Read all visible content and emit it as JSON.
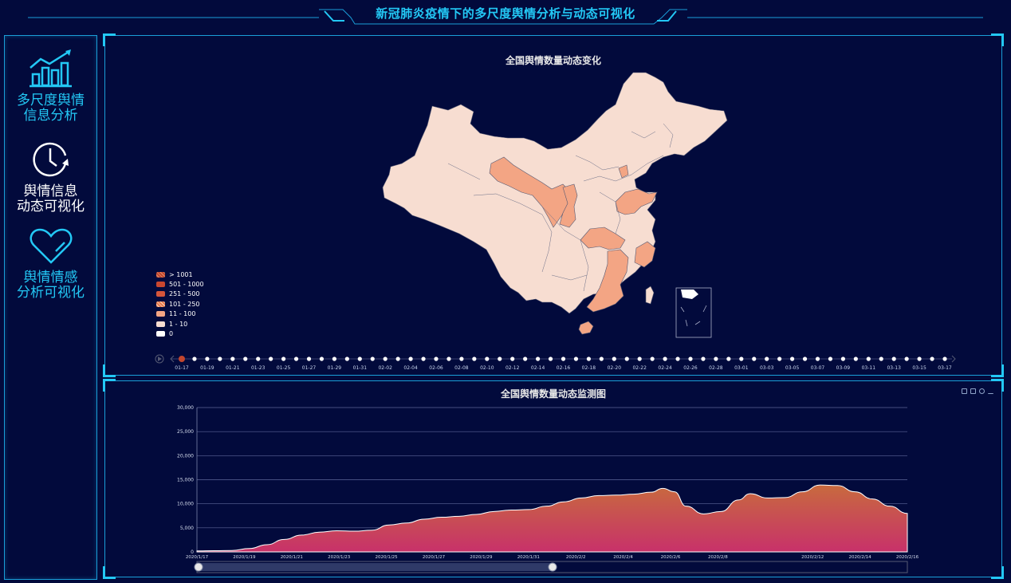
{
  "app_title": "新冠肺炎疫情下的多尺度舆情分析与动态可视化",
  "sidebar": {
    "items": [
      {
        "label_l1": "多尺度舆情",
        "label_l2": "信息分析",
        "icon": "bar-chart-trend-icon",
        "color": "#23c8f5"
      },
      {
        "label_l1": "舆情信息",
        "label_l2": "动态可视化",
        "icon": "clock-icon",
        "color": "#ffffff"
      },
      {
        "label_l1": "舆情情感",
        "label_l2": "分析可视化",
        "icon": "heart-icon",
        "color": "#23c8f5"
      }
    ]
  },
  "map_panel": {
    "title": "全国舆情数量动态变化",
    "legend": [
      {
        "label": "> 1001",
        "color": "#c2462e",
        "hatched": true
      },
      {
        "label": "501 - 1000",
        "color": "#c9472f"
      },
      {
        "label": "251 - 500",
        "color": "#d5553a"
      },
      {
        "label": "101 - 250",
        "color": "#e8794d",
        "hatched": true
      },
      {
        "label": "11 - 100",
        "color": "#f3a584"
      },
      {
        "label": "1 - 10",
        "color": "#f7ddd1"
      },
      {
        "label": "0",
        "color": "#ffffff"
      }
    ],
    "timeline": {
      "labels": [
        "01-17",
        "01-19",
        "01-21",
        "01-23",
        "01-25",
        "01-27",
        "01-29",
        "01-31",
        "02-02",
        "02-04",
        "02-06",
        "02-08",
        "02-10",
        "02-12",
        "02-14",
        "02-16",
        "02-18",
        "02-20",
        "02-22",
        "02-24",
        "02-26",
        "02-28",
        "03-01",
        "03-03",
        "03-05",
        "03-07",
        "03-09",
        "03-11",
        "03-13",
        "03-15",
        "03-17"
      ],
      "current": "01-17"
    }
  },
  "chart_panel": {
    "title": "全国舆情数量动态监测图",
    "toolbox": [
      "zoom-select-icon",
      "zoom-reset-icon",
      "restore-icon",
      "download-icon"
    ]
  },
  "chart_data": {
    "type": "area",
    "title": "全国舆情数量动态监测图",
    "x_tick_labels": [
      "2020/1/17",
      "2020/1/19",
      "2020/1/21",
      "2020/1/23",
      "2020/1/25",
      "2020/1/27",
      "2020/1/29",
      "2020/1/31",
      "2020/2/2",
      "2020/2/4",
      "2020/2/6",
      "2020/2/8",
      "2020/2/12",
      "2020/2/14",
      "2020/2/16"
    ],
    "y_tick_labels": [
      "0",
      "5,000",
      "10,000",
      "15,000",
      "20,000",
      "25,000",
      "30,000"
    ],
    "ylim": [
      0,
      30000
    ],
    "grid": true,
    "colors": {
      "top": "#c86a3e",
      "bottom": "#c8316a"
    },
    "series": [
      {
        "values": [
          [
            0,
            200
          ],
          [
            3,
            250
          ],
          [
            6,
            300
          ],
          [
            9,
            700
          ],
          [
            12,
            1500
          ],
          [
            15,
            2600
          ],
          [
            18,
            3500
          ],
          [
            21,
            4100
          ],
          [
            24,
            4400
          ],
          [
            27,
            4300
          ],
          [
            30,
            4500
          ],
          [
            33,
            5600
          ],
          [
            36,
            6000
          ],
          [
            39,
            6800
          ],
          [
            42,
            7200
          ],
          [
            45,
            7400
          ],
          [
            48,
            7800
          ],
          [
            51,
            8400
          ],
          [
            54,
            8700
          ],
          [
            57,
            8800
          ],
          [
            60,
            9500
          ],
          [
            63,
            10400
          ],
          [
            66,
            11200
          ],
          [
            69,
            11700
          ],
          [
            72,
            11800
          ],
          [
            75,
            12000
          ],
          [
            78,
            12400
          ],
          [
            80,
            13200
          ],
          [
            82,
            12500
          ],
          [
            84,
            9500
          ],
          [
            87,
            7900
          ],
          [
            90,
            8400
          ],
          [
            93,
            10800
          ],
          [
            95,
            12100
          ],
          [
            98,
            11200
          ],
          [
            101,
            11300
          ],
          [
            104,
            12500
          ],
          [
            107,
            13900
          ],
          [
            110,
            13800
          ],
          [
            113,
            12500
          ],
          [
            116,
            11000
          ],
          [
            119,
            9500
          ],
          [
            122,
            8000
          ]
        ]
      }
    ]
  }
}
